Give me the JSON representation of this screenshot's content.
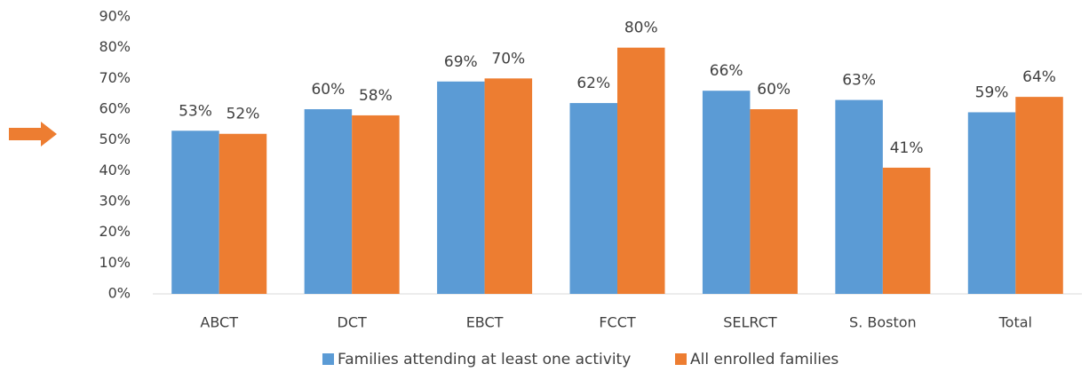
{
  "chart_data": {
    "type": "bar",
    "categories": [
      "ABCT",
      "DCT",
      "EBCT",
      "FCCT",
      "SELRCT",
      "S. Boston",
      "Total"
    ],
    "series": [
      {
        "name": "Families attending at least one activity",
        "color": "#5b9bd5",
        "values": [
          53,
          60,
          69,
          62,
          66,
          63,
          59
        ],
        "value_labels": [
          "53%",
          "60%",
          "69%",
          "62%",
          "66%",
          "63%",
          "59%"
        ]
      },
      {
        "name": "All enrolled families",
        "color": "#ed7d31",
        "values": [
          52,
          58,
          70,
          80,
          60,
          41,
          64
        ],
        "value_labels": [
          "52%",
          "58%",
          "70%",
          "80%",
          "60%",
          "41%",
          "64%"
        ]
      }
    ],
    "ylim": [
      0,
      90
    ],
    "yticks": [
      {
        "value": 0,
        "label": "0%"
      },
      {
        "value": 10,
        "label": "10%"
      },
      {
        "value": 20,
        "label": "20%"
      },
      {
        "value": 30,
        "label": "30%"
      },
      {
        "value": 40,
        "label": "40%"
      },
      {
        "value": 50,
        "label": "50%"
      },
      {
        "value": 60,
        "label": "60%"
      },
      {
        "value": 70,
        "label": "70%"
      },
      {
        "value": 80,
        "label": "80%"
      },
      {
        "value": 90,
        "label": "90%"
      }
    ],
    "grid": false,
    "legend": "bottom"
  }
}
